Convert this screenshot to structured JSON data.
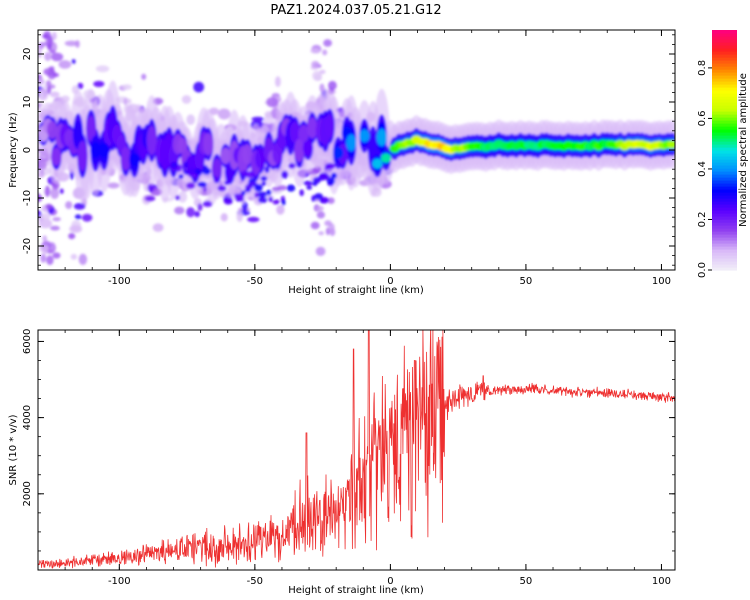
{
  "title": "PAZ1.2024.037.05.21.G12",
  "colors": {
    "snr_line": "#ee3030",
    "colormap": [
      "#f2f0f8",
      "#d8b8f8",
      "#9040f0",
      "#5a00ff",
      "#0000ff",
      "#0090ff",
      "#00e5e5",
      "#00ff00",
      "#c8ff00",
      "#ffff00",
      "#ff8800",
      "#ff2020",
      "#ff0080"
    ]
  },
  "chart_data": [
    {
      "type": "heatmap",
      "name": "spectrogram",
      "xlabel": "Height of straight line (km)",
      "ylabel": "Frequency (Hz)",
      "xlim": [
        -130,
        105
      ],
      "ylim": [
        -25,
        25
      ],
      "xticks": [
        -100,
        -50,
        0,
        50,
        100
      ],
      "yticks": [
        -20,
        -10,
        0,
        10,
        20
      ],
      "value_description": "Normalized spectral amplitude, 0 to 1",
      "ridge": [
        {
          "x": -125,
          "f": 2.0,
          "amp": 0.15
        },
        {
          "x": -115,
          "f": 2.0,
          "amp": 0.3
        },
        {
          "x": -105,
          "f": 2.0,
          "amp": 0.3
        },
        {
          "x": -95,
          "f": 1.0,
          "amp": 0.3
        },
        {
          "x": -85,
          "f": -1.0,
          "amp": 0.25
        },
        {
          "x": -75,
          "f": -1.5,
          "amp": 0.25
        },
        {
          "x": -65,
          "f": -1.5,
          "amp": 0.25
        },
        {
          "x": -55,
          "f": -2.0,
          "amp": 0.25
        },
        {
          "x": -45,
          "f": 0.0,
          "amp": 0.25
        },
        {
          "x": -35,
          "f": 3.0,
          "amp": 0.25
        },
        {
          "x": -25,
          "f": 3.0,
          "amp": 0.3
        },
        {
          "x": -15,
          "f": 1.0,
          "amp": 0.4
        },
        {
          "x": -8,
          "f": -1.0,
          "amp": 0.4
        },
        {
          "x": -2,
          "f": -0.5,
          "amp": 0.55
        },
        {
          "x": 4,
          "f": 1.0,
          "amp": 0.6
        },
        {
          "x": 10,
          "f": 2.0,
          "amp": 0.7
        },
        {
          "x": 16,
          "f": 1.0,
          "amp": 0.8
        },
        {
          "x": 22,
          "f": 0.0,
          "amp": 0.75
        },
        {
          "x": 30,
          "f": 0.5,
          "amp": 0.6
        },
        {
          "x": 40,
          "f": 1.0,
          "amp": 0.55
        },
        {
          "x": 60,
          "f": 1.0,
          "amp": 0.58
        },
        {
          "x": 80,
          "f": 1.0,
          "amp": 0.6
        },
        {
          "x": 95,
          "f": 1.0,
          "amp": 0.72
        },
        {
          "x": 105,
          "f": 1.0,
          "amp": 0.65
        }
      ]
    },
    {
      "type": "colorbar",
      "label": "Normalized spectral amplitude",
      "ylim": [
        0,
        0.95
      ],
      "ticks": [
        0.0,
        0.2,
        0.4,
        0.6,
        0.8
      ]
    },
    {
      "type": "line",
      "name": "snr",
      "xlabel": "Height of straight line (km)",
      "ylabel": "SNR (10 * v/v)",
      "xlim": [
        -130,
        105
      ],
      "ylim": [
        0,
        6300
      ],
      "xticks": [
        -100,
        -50,
        0,
        50,
        100
      ],
      "yticks": [
        2000,
        4000,
        6000
      ],
      "series": [
        {
          "x": [
            -130,
            -120,
            -110,
            -100,
            -90,
            -80,
            -70,
            -60,
            -50,
            -40,
            -35,
            -30,
            -25,
            -20,
            -15,
            -10,
            -5,
            0,
            5,
            10,
            15,
            20,
            25,
            30,
            35,
            40,
            45,
            50,
            55,
            60,
            70,
            80,
            90,
            100,
            105
          ],
          "values": [
            150,
            170,
            250,
            300,
            400,
            500,
            600,
            650,
            750,
            900,
            1100,
            1200,
            1300,
            1500,
            1800,
            2200,
            2800,
            3200,
            3300,
            3700,
            4000,
            4300,
            4500,
            4650,
            4700,
            4720,
            4750,
            4760,
            4740,
            4700,
            4680,
            4650,
            4600,
            4550,
            4520
          ]
        }
      ],
      "spikes": [
        {
          "x": -31,
          "y": 3600
        },
        {
          "x": -13.5,
          "y": 5800
        },
        {
          "x": -8,
          "y": 6300
        },
        {
          "x": 9,
          "y": 5500
        }
      ]
    }
  ]
}
